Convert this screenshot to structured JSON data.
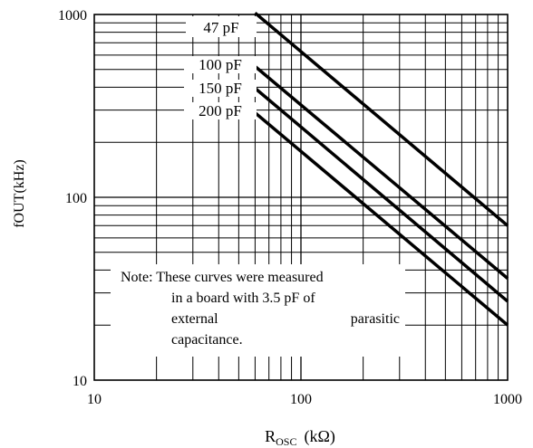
{
  "chart_data": {
    "type": "line",
    "xscale": "log",
    "yscale": "log",
    "xlim": [
      10,
      1000
    ],
    "ylim": [
      10,
      1000
    ],
    "xticks": [
      10,
      100,
      1000
    ],
    "yticks": [
      10,
      100,
      1000
    ],
    "xtick_labels": [
      "10",
      "100",
      "1000"
    ],
    "ytick_labels": [
      "10",
      "100",
      "1000"
    ],
    "xlabel": {
      "main": "R",
      "sub": "OSC",
      "unit": "(kΩ)"
    },
    "ylabel": "fOUT(kHz)",
    "grid": true,
    "series": [
      {
        "name": "47 pF",
        "x": [
          60,
          1000
        ],
        "y": [
          1020,
          70
        ]
      },
      {
        "name": "100 pF",
        "x": [
          60,
          1000
        ],
        "y": [
          520,
          36
        ]
      },
      {
        "name": "150 pF",
        "x": [
          60,
          1000
        ],
        "y": [
          395,
          27
        ]
      },
      {
        "name": "200 pF",
        "x": [
          60,
          1000
        ],
        "y": [
          290,
          20
        ]
      }
    ],
    "note": [
      "Note: These curves were measured",
      "in a board with 3.5 pF of",
      "external",
      "parasitic",
      "capacitance."
    ]
  }
}
